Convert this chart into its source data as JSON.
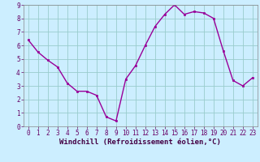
{
  "x": [
    0,
    1,
    2,
    3,
    4,
    5,
    6,
    7,
    8,
    9,
    10,
    11,
    12,
    13,
    14,
    15,
    16,
    17,
    18,
    19,
    20,
    21,
    22,
    23
  ],
  "y": [
    6.4,
    5.5,
    4.9,
    4.4,
    3.2,
    2.6,
    2.6,
    2.3,
    0.7,
    0.4,
    3.5,
    4.5,
    6.0,
    7.4,
    8.3,
    9.0,
    8.3,
    8.5,
    8.4,
    8.0,
    5.6,
    3.4,
    3.0,
    3.6
  ],
  "line_color": "#990099",
  "marker_color": "#990099",
  "bg_color": "#cceeff",
  "grid_color": "#99cccc",
  "xlabel": "Windchill (Refroidissement éolien,°C)",
  "xlim_min": -0.5,
  "xlim_max": 23.5,
  "ylim_min": 0,
  "ylim_max": 9,
  "xtick_labels": [
    "0",
    "1",
    "2",
    "3",
    "4",
    "5",
    "6",
    "7",
    "8",
    "9",
    "10",
    "11",
    "12",
    "13",
    "14",
    "15",
    "16",
    "17",
    "18",
    "19",
    "20",
    "21",
    "22",
    "23"
  ],
  "ytick_labels": [
    "0",
    "1",
    "2",
    "3",
    "4",
    "5",
    "6",
    "7",
    "8",
    "9"
  ],
  "xlabel_fontsize": 6.5,
  "tick_fontsize": 5.5,
  "line_width": 1.0,
  "marker_size": 2.0
}
